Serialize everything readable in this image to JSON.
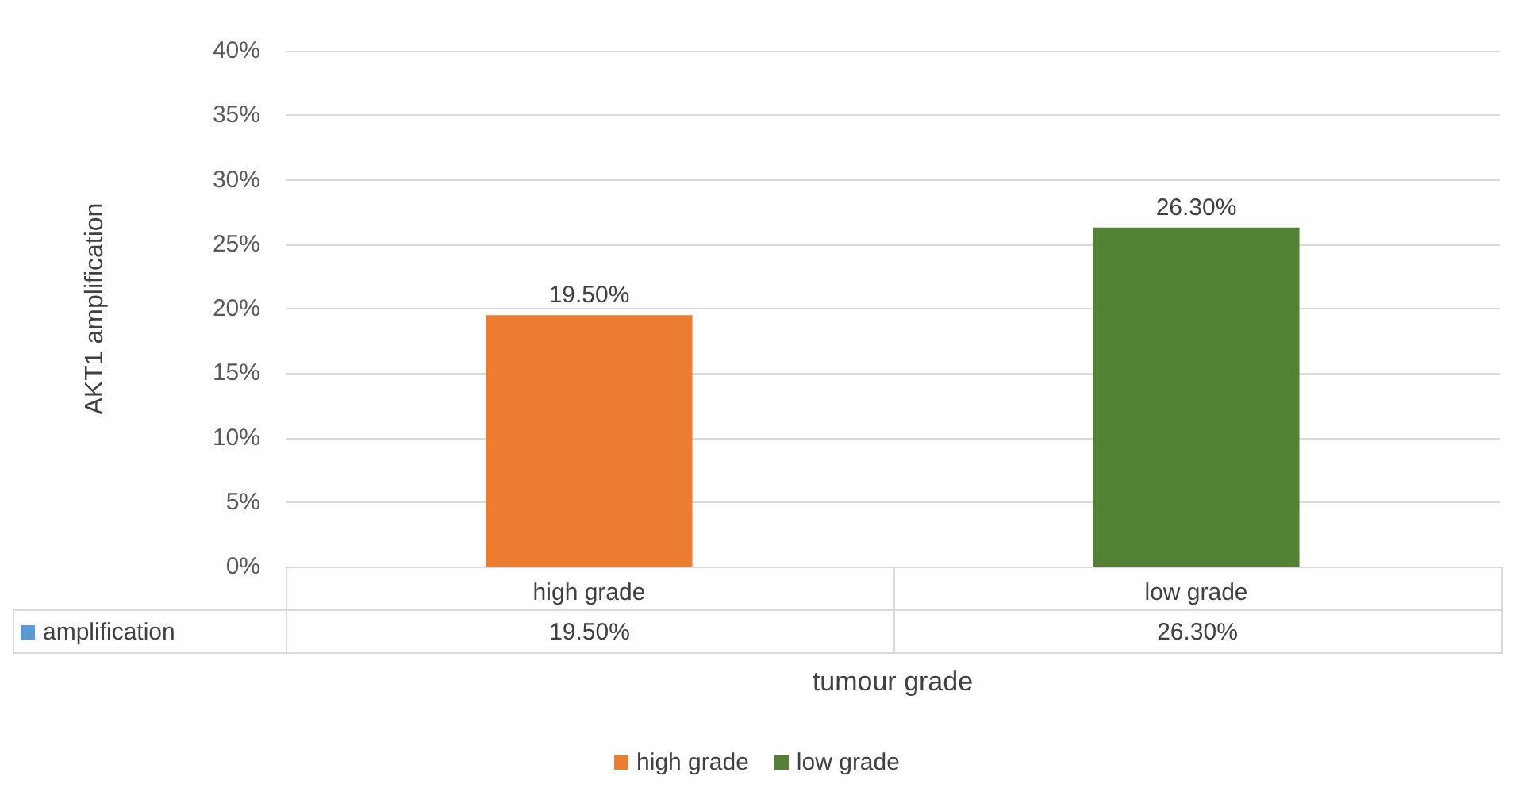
{
  "chart_data": {
    "type": "bar",
    "xlabel": "tumour grade",
    "ylabel": "AKT1 amplification",
    "categories": [
      "high grade",
      "low grade"
    ],
    "series": [
      {
        "name": "amplification",
        "color": "#5b9bd5",
        "colors": [
          "#ed7d31",
          "#548235"
        ],
        "values": [
          19.5,
          26.3
        ],
        "value_labels": [
          "19.50%",
          "26.30%"
        ]
      }
    ],
    "ylim": [
      0,
      40
    ],
    "yticks": [
      {
        "value": 0,
        "label": "0%"
      },
      {
        "value": 5,
        "label": "5%"
      },
      {
        "value": 10,
        "label": "10%"
      },
      {
        "value": 15,
        "label": "15%"
      },
      {
        "value": 20,
        "label": "20%"
      },
      {
        "value": 25,
        "label": "25%"
      },
      {
        "value": 30,
        "label": "30%"
      },
      {
        "value": 35,
        "label": "35%"
      },
      {
        "value": 40,
        "label": "40%"
      }
    ],
    "grid": "y",
    "legend": "bottom"
  }
}
